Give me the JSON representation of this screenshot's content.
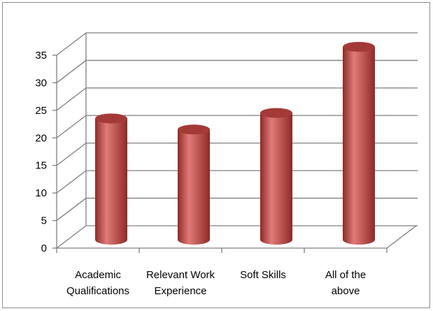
{
  "chart_data": {
    "type": "bar",
    "style": "3d-cylinder",
    "categories": [
      [
        "Academic",
        "Qualifications"
      ],
      [
        "Relevant Work",
        "Experience"
      ],
      [
        "Soft Skills"
      ],
      [
        "All of the",
        "above"
      ]
    ],
    "values": [
      22,
      20,
      23,
      35
    ],
    "ylim": [
      0,
      35
    ],
    "yticks": [
      "0",
      "5",
      "10",
      "15",
      "20",
      "25",
      "30",
      "35"
    ],
    "grid": true,
    "legend": "none",
    "colors": {
      "bar": "#c0504d",
      "bar_light": "#e07b78",
      "bar_dark": "#8e2a27",
      "bar_top": "#a33a37",
      "grid": "#7f7f7f"
    }
  }
}
